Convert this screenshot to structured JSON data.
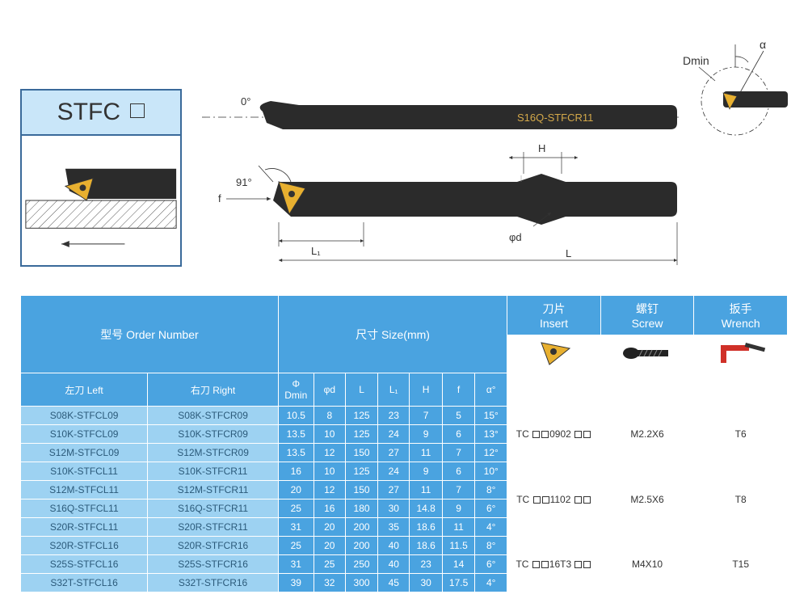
{
  "product_code": "STFC",
  "diagram": {
    "top_angle": "0°",
    "bar_label": "S16Q-STFCR11",
    "side_angle": "91°",
    "dims": {
      "H": "H",
      "L1": "L₁",
      "phid": "φd",
      "L": "L",
      "f": "f"
    },
    "corner": {
      "Dmin": "Dmin",
      "alpha": "α"
    }
  },
  "headers": {
    "order": "型号 Order Number",
    "size": "尺寸 Size(mm)",
    "insert": "刀片\nInsert",
    "screw": "螺钉\nScrew",
    "wrench": "扳手\nWrench",
    "left": "左刀 Left",
    "right": "右刀 Right",
    "size_cols": [
      "Φ\nDmin",
      "φd",
      "L",
      "L₁",
      "H",
      "f",
      "α°"
    ]
  },
  "rows": [
    {
      "l": "S08K-STFCL09",
      "r": "S08K-STFCR09",
      "s": [
        "10.5",
        "8",
        "125",
        "23",
        "7",
        "5",
        "15°"
      ]
    },
    {
      "l": "S10K-STFCL09",
      "r": "S10K-STFCR09",
      "s": [
        "13.5",
        "10",
        "125",
        "24",
        "9",
        "6",
        "13°"
      ]
    },
    {
      "l": "S12M-STFCL09",
      "r": "S12M-STFCR09",
      "s": [
        "13.5",
        "12",
        "150",
        "27",
        "11",
        "7",
        "12°"
      ]
    },
    {
      "l": "S10K-STFCL11",
      "r": "S10K-STFCR11",
      "s": [
        "16",
        "10",
        "125",
        "24",
        "9",
        "6",
        "10°"
      ]
    },
    {
      "l": "S12M-STFCL11",
      "r": "S12M-STFCR11",
      "s": [
        "20",
        "12",
        "150",
        "27",
        "11",
        "7",
        "8°"
      ]
    },
    {
      "l": "S16Q-STFCL11",
      "r": "S16Q-STFCR11",
      "s": [
        "25",
        "16",
        "180",
        "30",
        "14.8",
        "9",
        "6°"
      ]
    },
    {
      "l": "S20R-STFCL11",
      "r": "S20R-STFCR11",
      "s": [
        "31",
        "20",
        "200",
        "35",
        "18.6",
        "11",
        "4°"
      ]
    },
    {
      "l": "S20R-STFCL16",
      "r": "S20R-STFCR16",
      "s": [
        "25",
        "20",
        "200",
        "40",
        "18.6",
        "11.5",
        "8°"
      ]
    },
    {
      "l": "S25S-STFCL16",
      "r": "S25S-STFCR16",
      "s": [
        "31",
        "25",
        "250",
        "40",
        "23",
        "14",
        "6°"
      ]
    },
    {
      "l": "S32T-STFCL16",
      "r": "S32T-STFCR16",
      "s": [
        "39",
        "32",
        "300",
        "45",
        "30",
        "17.5",
        "4°"
      ]
    }
  ],
  "groups": [
    {
      "span": 3,
      "insert": "TC □□ 0902 □□",
      "screw": "M2.2X6",
      "wrench": "T6"
    },
    {
      "span": 4,
      "insert": "TC □□ 1102 □□",
      "screw": "M2.5X6",
      "wrench": "T8"
    },
    {
      "span": 3,
      "insert": "TC □□ 16T3 □□",
      "screw": "M4X10",
      "wrench": "T15"
    }
  ],
  "colors": {
    "header_blue": "#4aa3e0",
    "row_blue": "#9dd2f2",
    "border_blue": "#3a6a9a",
    "label_fill": "#c9e6f9",
    "tool_dark": "#2b2b2b",
    "insert_gold": "#e8b030",
    "wrench_red": "#d03028"
  }
}
